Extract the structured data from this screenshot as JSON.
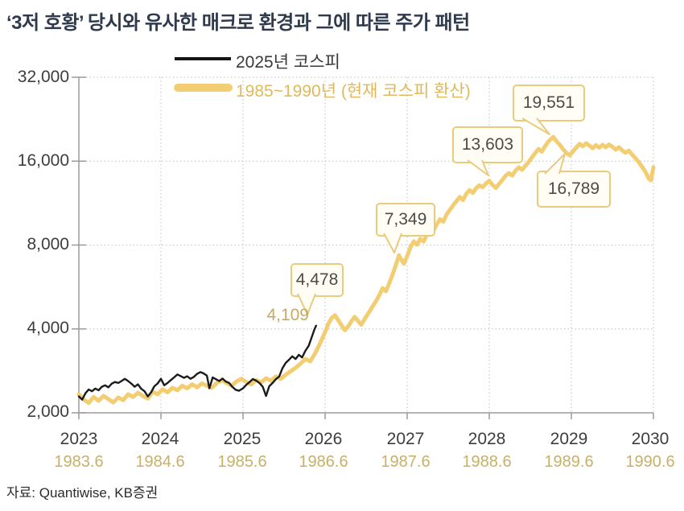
{
  "title": "‘3저 호황’ 당시와 유사한 매크로 환경과 그에 따른 주가 패턴",
  "source": "자료: Quantiwise, KB증권",
  "legend": {
    "series_black": "2025년 코스피",
    "series_gold": "1985~1990년 (현재 코스피 환산)"
  },
  "colors": {
    "title": "#2f3a4d",
    "gold_line": "#f3cd72",
    "black_line": "#1b1b1b",
    "gold_text": "#c9b066",
    "callout_border": "#eacb7d",
    "callout_fill": "#fffdf4",
    "grid": "#c9c9c9",
    "axis": "#9b9b9b"
  },
  "chart_data": {
    "type": "line",
    "y_scale": "log2",
    "ylim": [
      2000,
      32000
    ],
    "grid": true,
    "legend_position": "top-center",
    "y_tick_values": [
      32000,
      16000,
      8000,
      4000,
      2000
    ],
    "y_tick_labels": [
      "32,000",
      "16,000",
      "8,000",
      "4,000",
      "2,000"
    ],
    "x_tick_years": [
      2023,
      2024,
      2025,
      2026,
      2027,
      2028,
      2029,
      2030
    ],
    "x_tick_labels_top": [
      "2023",
      "2024",
      "2025",
      "2026",
      "2027",
      "2028",
      "2029",
      "2030"
    ],
    "x_tick_labels_bottom": [
      "1983.6",
      "1984.6",
      "1985.6",
      "1986.6",
      "1987.6",
      "1988.6",
      "1989.6",
      "1990.6"
    ],
    "annotations": [
      {
        "label": "4,109",
        "value": 4109,
        "x": 2025.89,
        "series": "2025년 코스피",
        "style": "text"
      },
      {
        "label": "4,478",
        "value": 4478,
        "x": 2026.12,
        "series": "1985~1990년",
        "style": "callout"
      },
      {
        "label": "7,349",
        "value": 7349,
        "x": 2026.9,
        "series": "1985~1990년",
        "style": "callout"
      },
      {
        "label": "13,603",
        "value": 13603,
        "x": 2028.0,
        "series": "1985~1990년",
        "style": "callout"
      },
      {
        "label": "19,551",
        "value": 19551,
        "x": 2028.78,
        "series": "1985~1990년",
        "style": "callout"
      },
      {
        "label": "16,789",
        "value": 16789,
        "x": 2028.98,
        "series": "1985~1990년",
        "style": "callout"
      }
    ],
    "series": [
      {
        "name": "1985~1990년 (현재 코스피 환산)",
        "color": "#f3cd72",
        "width": 5,
        "points": [
          [
            2023.0,
            2330
          ],
          [
            2023.06,
            2230
          ],
          [
            2023.12,
            2170
          ],
          [
            2023.18,
            2280
          ],
          [
            2023.24,
            2210
          ],
          [
            2023.3,
            2300
          ],
          [
            2023.36,
            2240
          ],
          [
            2023.42,
            2180
          ],
          [
            2023.48,
            2270
          ],
          [
            2023.54,
            2220
          ],
          [
            2023.6,
            2330
          ],
          [
            2023.66,
            2280
          ],
          [
            2023.72,
            2360
          ],
          [
            2023.78,
            2300
          ],
          [
            2023.84,
            2250
          ],
          [
            2023.9,
            2380
          ],
          [
            2023.96,
            2330
          ],
          [
            2024.02,
            2430
          ],
          [
            2024.08,
            2370
          ],
          [
            2024.14,
            2460
          ],
          [
            2024.2,
            2410
          ],
          [
            2024.26,
            2500
          ],
          [
            2024.32,
            2450
          ],
          [
            2024.38,
            2530
          ],
          [
            2024.44,
            2470
          ],
          [
            2024.5,
            2550
          ],
          [
            2024.56,
            2500
          ],
          [
            2024.62,
            2460
          ],
          [
            2024.68,
            2560
          ],
          [
            2024.74,
            2620
          ],
          [
            2024.8,
            2560
          ],
          [
            2024.86,
            2500
          ],
          [
            2024.92,
            2590
          ],
          [
            2024.98,
            2650
          ],
          [
            2025.04,
            2580
          ],
          [
            2025.1,
            2530
          ],
          [
            2025.16,
            2620
          ],
          [
            2025.22,
            2570
          ],
          [
            2025.28,
            2660
          ],
          [
            2025.34,
            2610
          ],
          [
            2025.4,
            2700
          ],
          [
            2025.46,
            2650
          ],
          [
            2025.52,
            2740
          ],
          [
            2025.58,
            2820
          ],
          [
            2025.64,
            2900
          ],
          [
            2025.7,
            3000
          ],
          [
            2025.76,
            3120
          ],
          [
            2025.82,
            3060
          ],
          [
            2025.88,
            3280
          ],
          [
            2025.94,
            3560
          ],
          [
            2026.0,
            3900
          ],
          [
            2026.04,
            4180
          ],
          [
            2026.08,
            4380
          ],
          [
            2026.12,
            4478
          ],
          [
            2026.16,
            4300
          ],
          [
            2026.2,
            4120
          ],
          [
            2026.24,
            3960
          ],
          [
            2026.28,
            4080
          ],
          [
            2026.32,
            4260
          ],
          [
            2026.36,
            4420
          ],
          [
            2026.4,
            4280
          ],
          [
            2026.44,
            4140
          ],
          [
            2026.48,
            4340
          ],
          [
            2026.52,
            4520
          ],
          [
            2026.56,
            4720
          ],
          [
            2026.61,
            4980
          ],
          [
            2026.66,
            5280
          ],
          [
            2026.7,
            5600
          ],
          [
            2026.74,
            5460
          ],
          [
            2026.78,
            5820
          ],
          [
            2026.82,
            6250
          ],
          [
            2026.86,
            6750
          ],
          [
            2026.9,
            7349
          ],
          [
            2026.93,
            7080
          ],
          [
            2026.96,
            6850
          ],
          [
            2027.0,
            7300
          ],
          [
            2027.04,
            7850
          ],
          [
            2027.08,
            8250
          ],
          [
            2027.12,
            8020
          ],
          [
            2027.16,
            8420
          ],
          [
            2027.2,
            8230
          ],
          [
            2027.24,
            8750
          ],
          [
            2027.28,
            9200
          ],
          [
            2027.32,
            9000
          ],
          [
            2027.36,
            9500
          ],
          [
            2027.4,
            9900
          ],
          [
            2027.44,
            9700
          ],
          [
            2027.48,
            10300
          ],
          [
            2027.52,
            10700
          ],
          [
            2027.56,
            11100
          ],
          [
            2027.6,
            11500
          ],
          [
            2027.64,
            11900
          ],
          [
            2027.68,
            11600
          ],
          [
            2027.72,
            12200
          ],
          [
            2027.76,
            12600
          ],
          [
            2027.8,
            12300
          ],
          [
            2027.84,
            12800
          ],
          [
            2027.88,
            13100
          ],
          [
            2027.92,
            12900
          ],
          [
            2027.96,
            13300
          ],
          [
            2028.0,
            13603
          ],
          [
            2028.04,
            13150
          ],
          [
            2028.08,
            12820
          ],
          [
            2028.12,
            13250
          ],
          [
            2028.16,
            13700
          ],
          [
            2028.2,
            14200
          ],
          [
            2028.24,
            14500
          ],
          [
            2028.28,
            14200
          ],
          [
            2028.32,
            14800
          ],
          [
            2028.36,
            15200
          ],
          [
            2028.4,
            14900
          ],
          [
            2028.44,
            15400
          ],
          [
            2028.48,
            15900
          ],
          [
            2028.52,
            16500
          ],
          [
            2028.56,
            17100
          ],
          [
            2028.6,
            17700
          ],
          [
            2028.64,
            17300
          ],
          [
            2028.68,
            18100
          ],
          [
            2028.72,
            18800
          ],
          [
            2028.78,
            19551
          ],
          [
            2028.82,
            18850
          ],
          [
            2028.86,
            18300
          ],
          [
            2028.9,
            17650
          ],
          [
            2028.94,
            17100
          ],
          [
            2028.98,
            16789
          ],
          [
            2029.02,
            17350
          ],
          [
            2029.06,
            17900
          ],
          [
            2029.1,
            18450
          ],
          [
            2029.14,
            18100
          ],
          [
            2029.18,
            18550
          ],
          [
            2029.22,
            18200
          ],
          [
            2029.26,
            17800
          ],
          [
            2029.3,
            18250
          ],
          [
            2029.34,
            17900
          ],
          [
            2029.38,
            18300
          ],
          [
            2029.42,
            17950
          ],
          [
            2029.46,
            18350
          ],
          [
            2029.5,
            18000
          ],
          [
            2029.54,
            17600
          ],
          [
            2029.58,
            17950
          ],
          [
            2029.62,
            17500
          ],
          [
            2029.66,
            17150
          ],
          [
            2029.7,
            17450
          ],
          [
            2029.74,
            16900
          ],
          [
            2029.78,
            16400
          ],
          [
            2029.82,
            15900
          ],
          [
            2029.86,
            15300
          ],
          [
            2029.9,
            14700
          ],
          [
            2029.94,
            13900
          ],
          [
            2029.97,
            13650
          ],
          [
            2030.0,
            15200
          ]
        ]
      },
      {
        "name": "2025년 코스피",
        "color": "#1b1b1b",
        "width": 2.4,
        "points": [
          [
            2023.0,
            2290
          ],
          [
            2023.04,
            2230
          ],
          [
            2023.08,
            2350
          ],
          [
            2023.12,
            2425
          ],
          [
            2023.16,
            2390
          ],
          [
            2023.2,
            2445
          ],
          [
            2023.24,
            2410
          ],
          [
            2023.28,
            2480
          ],
          [
            2023.32,
            2510
          ],
          [
            2023.36,
            2470
          ],
          [
            2023.4,
            2545
          ],
          [
            2023.44,
            2580
          ],
          [
            2023.48,
            2560
          ],
          [
            2023.52,
            2600
          ],
          [
            2023.56,
            2650
          ],
          [
            2023.6,
            2600
          ],
          [
            2023.64,
            2545
          ],
          [
            2023.68,
            2480
          ],
          [
            2023.72,
            2530
          ],
          [
            2023.76,
            2440
          ],
          [
            2023.8,
            2390
          ],
          [
            2023.84,
            2290
          ],
          [
            2023.88,
            2370
          ],
          [
            2023.92,
            2490
          ],
          [
            2023.96,
            2550
          ],
          [
            2024.0,
            2650
          ],
          [
            2024.04,
            2510
          ],
          [
            2024.08,
            2560
          ],
          [
            2024.12,
            2620
          ],
          [
            2024.16,
            2680
          ],
          [
            2024.2,
            2745
          ],
          [
            2024.24,
            2710
          ],
          [
            2024.28,
            2670
          ],
          [
            2024.32,
            2705
          ],
          [
            2024.36,
            2650
          ],
          [
            2024.4,
            2690
          ],
          [
            2024.44,
            2760
          ],
          [
            2024.48,
            2800
          ],
          [
            2024.52,
            2770
          ],
          [
            2024.56,
            2720
          ],
          [
            2024.59,
            2450
          ],
          [
            2024.63,
            2680
          ],
          [
            2024.67,
            2640
          ],
          [
            2024.71,
            2600
          ],
          [
            2024.75,
            2655
          ],
          [
            2024.79,
            2590
          ],
          [
            2024.83,
            2560
          ],
          [
            2024.87,
            2480
          ],
          [
            2024.91,
            2420
          ],
          [
            2024.95,
            2400
          ],
          [
            2025.0,
            2450
          ],
          [
            2025.04,
            2520
          ],
          [
            2025.08,
            2580
          ],
          [
            2025.12,
            2645
          ],
          [
            2025.16,
            2610
          ],
          [
            2025.2,
            2560
          ],
          [
            2025.24,
            2480
          ],
          [
            2025.28,
            2300
          ],
          [
            2025.32,
            2490
          ],
          [
            2025.36,
            2560
          ],
          [
            2025.4,
            2640
          ],
          [
            2025.44,
            2700
          ],
          [
            2025.48,
            2890
          ],
          [
            2025.52,
            3020
          ],
          [
            2025.56,
            3100
          ],
          [
            2025.6,
            3190
          ],
          [
            2025.64,
            3120
          ],
          [
            2025.68,
            3230
          ],
          [
            2025.72,
            3160
          ],
          [
            2025.76,
            3340
          ],
          [
            2025.8,
            3480
          ],
          [
            2025.84,
            3760
          ],
          [
            2025.87,
            3980
          ],
          [
            2025.89,
            4109
          ]
        ]
      }
    ]
  }
}
